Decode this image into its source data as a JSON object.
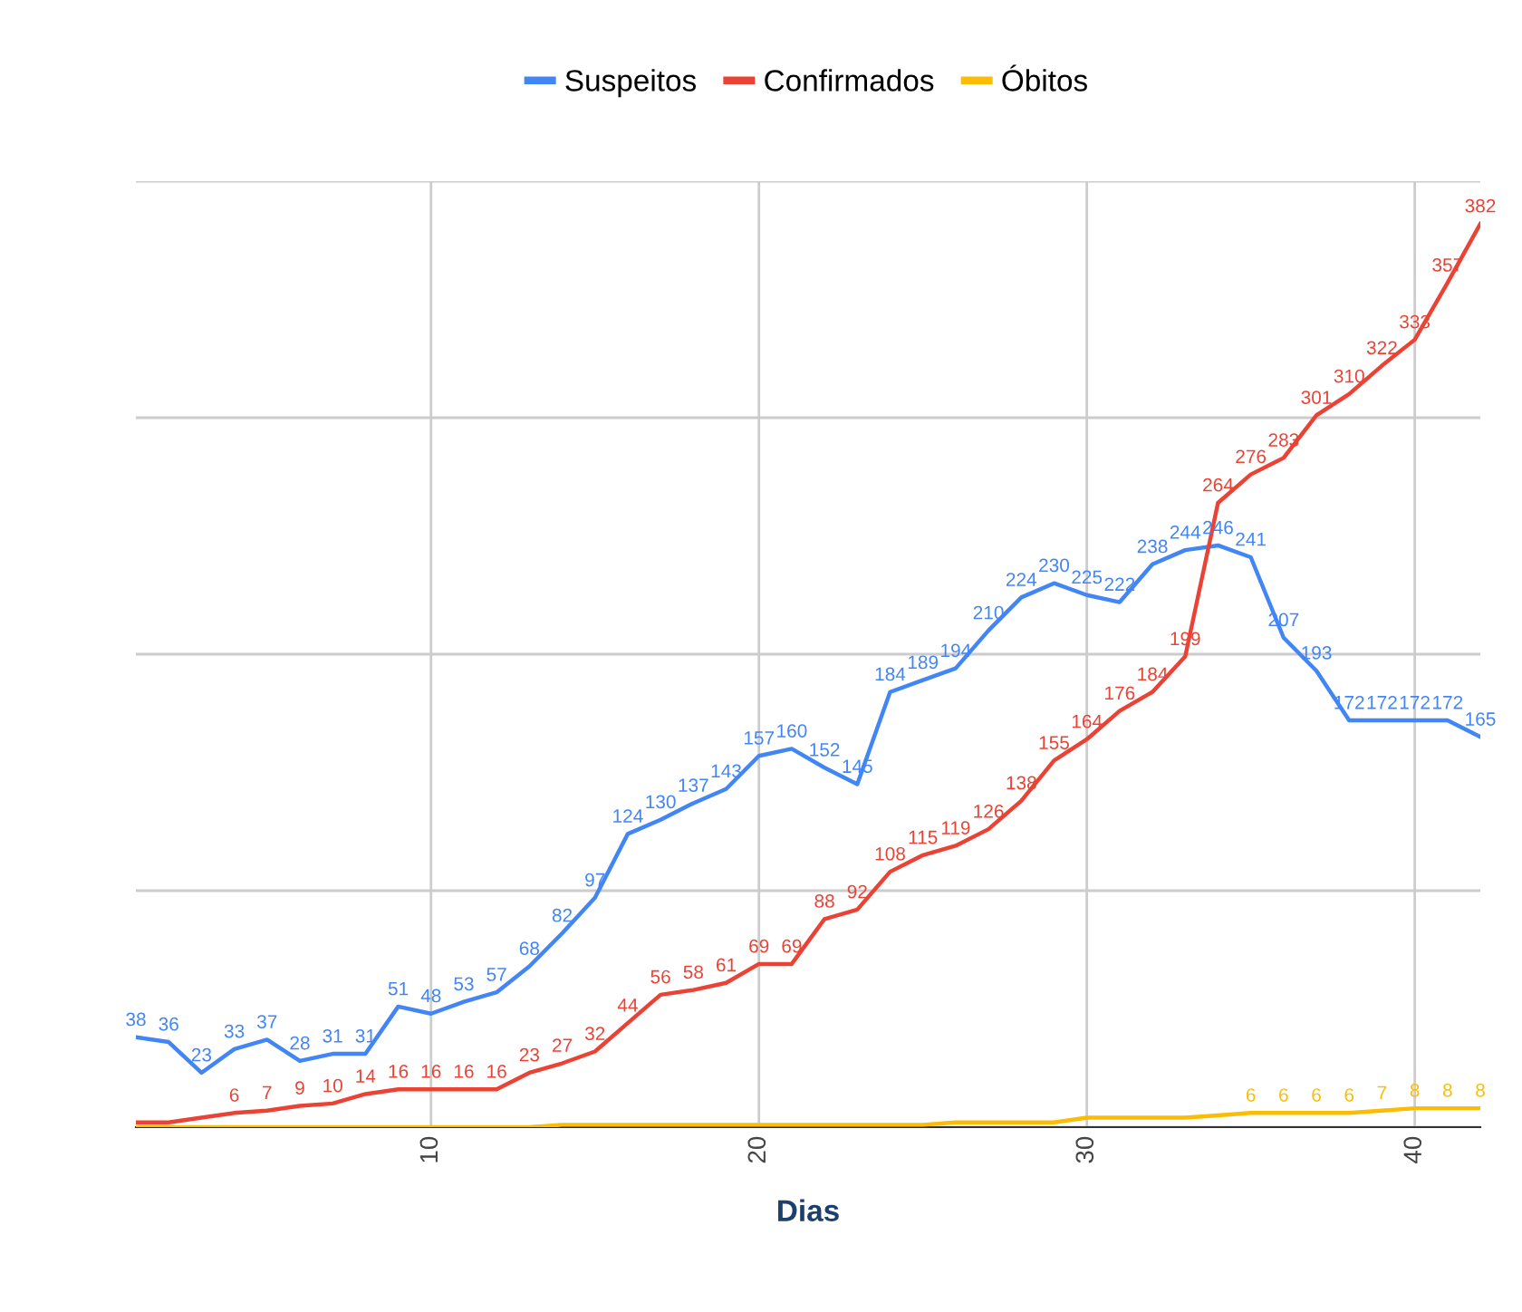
{
  "chart_data": {
    "type": "line",
    "xlabel": "Dias",
    "x": [
      1,
      2,
      3,
      4,
      5,
      6,
      7,
      8,
      9,
      10,
      11,
      12,
      13,
      14,
      15,
      16,
      17,
      18,
      19,
      20,
      21,
      22,
      23,
      24,
      25,
      26,
      27,
      28,
      29,
      30,
      31,
      32,
      33,
      34,
      35,
      36,
      37,
      38,
      39,
      40,
      41,
      42
    ],
    "series": [
      {
        "name": "Suspeitos",
        "color": "#4285f4",
        "values": [
          38,
          36,
          23,
          33,
          37,
          28,
          31,
          31,
          51,
          48,
          53,
          57,
          68,
          82,
          97,
          124,
          130,
          137,
          143,
          157,
          160,
          152,
          145,
          184,
          189,
          194,
          210,
          224,
          230,
          225,
          222,
          238,
          244,
          246,
          241,
          207,
          193,
          172,
          172,
          172,
          172,
          165
        ],
        "value_labels": [
          "38",
          "36",
          "23",
          "33",
          "37",
          "28",
          "31",
          "31",
          "51",
          "48",
          "53",
          "57",
          "68",
          "82",
          "97",
          "124",
          "130",
          "137",
          "143",
          "157",
          "160",
          "152",
          "145",
          "184",
          "189",
          "194",
          "210",
          "224",
          "230",
          "225",
          "222",
          "238",
          "244",
          "246",
          "241",
          "207",
          "193",
          "172",
          "172",
          "172",
          "172",
          "165"
        ]
      },
      {
        "name": "Confirmados",
        "color": "#ea4335",
        "values": [
          2,
          2,
          4,
          6,
          7,
          9,
          10,
          14,
          16,
          16,
          16,
          16,
          23,
          27,
          32,
          44,
          56,
          58,
          61,
          69,
          69,
          88,
          92,
          108,
          115,
          119,
          126,
          138,
          155,
          164,
          176,
          184,
          199,
          264,
          276,
          283,
          301,
          310,
          322,
          333,
          357,
          382
        ],
        "value_labels": [
          null,
          null,
          null,
          "6",
          "7",
          "9",
          "10",
          "14",
          "16",
          "16",
          "16",
          "16",
          "23",
          "27",
          "32",
          "44",
          "56",
          "58",
          "61",
          "69",
          "69",
          "88",
          "92",
          "108",
          "115",
          "119",
          "126",
          "138",
          "155",
          "164",
          "176",
          "184",
          "199",
          "264",
          "276",
          "283",
          "301",
          "310",
          "322",
          "333",
          "357",
          "382"
        ]
      },
      {
        "name": "Óbitos",
        "color": "#fbbc04",
        "values": [
          0,
          0,
          0,
          0,
          0,
          0,
          0,
          0,
          0,
          0,
          0,
          0,
          0,
          1,
          1,
          1,
          1,
          1,
          1,
          1,
          1,
          1,
          1,
          1,
          1,
          2,
          2,
          2,
          2,
          4,
          4,
          4,
          4,
          5,
          6,
          6,
          6,
          6,
          7,
          8,
          8,
          8
        ],
        "value_labels": [
          null,
          null,
          null,
          null,
          null,
          null,
          null,
          null,
          null,
          null,
          null,
          null,
          null,
          null,
          null,
          null,
          null,
          null,
          null,
          null,
          null,
          null,
          null,
          null,
          null,
          null,
          null,
          null,
          null,
          null,
          null,
          null,
          null,
          null,
          "6",
          "6",
          "6",
          "6",
          "7",
          "8",
          "8",
          "8"
        ]
      }
    ],
    "xlim": [
      1,
      42
    ],
    "xticks": [
      10,
      20,
      30,
      40
    ],
    "ylim": [
      0,
      400
    ],
    "yticks": [
      {
        "value": 0,
        "label": null
      },
      {
        "value": 100,
        "label": null
      },
      {
        "value": 200,
        "label": null
      },
      {
        "value": 300,
        "label": null
      },
      {
        "value": 400,
        "label": null
      }
    ],
    "tick_labels": "x",
    "grid": true,
    "legend": "top",
    "marker": "none",
    "line_style": "solid"
  }
}
